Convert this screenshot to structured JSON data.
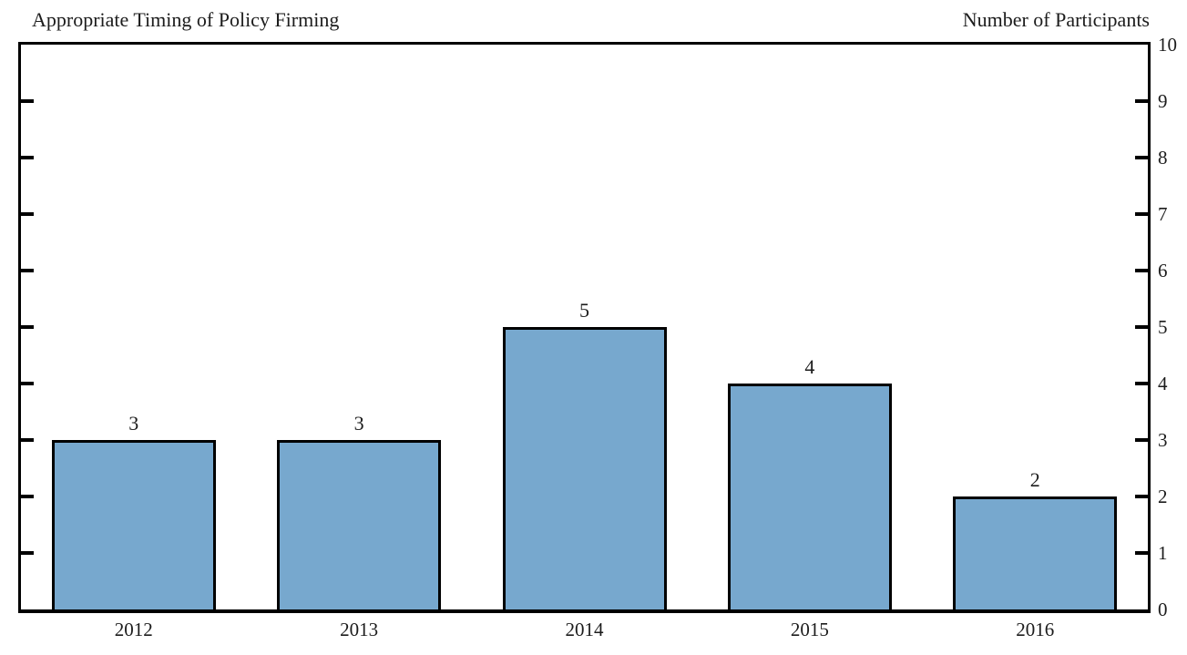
{
  "header": {
    "left_title": "Appropriate Timing of Policy Firming",
    "right_title": "Number of Participants"
  },
  "chart_data": {
    "type": "bar",
    "title": "Appropriate Timing of Policy Firming",
    "right_axis_title": "Number of Participants",
    "categories": [
      "2012",
      "2013",
      "2014",
      "2015",
      "2016"
    ],
    "values": [
      3,
      3,
      5,
      4,
      2
    ],
    "value_labels": [
      "3",
      "3",
      "5",
      "4",
      "2"
    ],
    "xlabel": "",
    "ylabel": "Number of Participants",
    "ylim": [
      0,
      10
    ],
    "y_ticks": [
      0,
      1,
      2,
      3,
      4,
      5,
      6,
      7,
      8,
      9,
      10
    ],
    "y_tick_side": "right",
    "tick_marks_both_sides": true,
    "grid": false,
    "legend": "none",
    "bar_fill_color": "#77A8CE",
    "bar_border_color": "#000000",
    "axis_color": "#000000",
    "text_color": "#1C1C1C",
    "background_color": "#FFFFFF"
  }
}
